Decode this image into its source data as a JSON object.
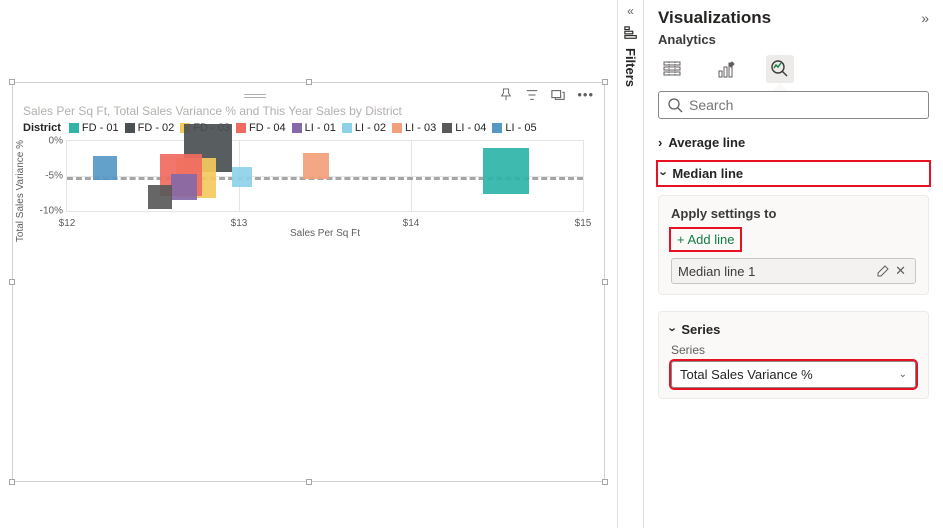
{
  "chart": {
    "title": "Sales Per Sq Ft, Total Sales Variance % and This Year Sales by District",
    "legend_title": "District",
    "x_axis_title": "Sales Per Sq Ft",
    "y_axis_title": "Total Sales Variance %",
    "xlim": [
      12,
      15
    ],
    "ylim": [
      -10,
      0
    ],
    "xticks": [
      "$12",
      "$13",
      "$14",
      "$15"
    ],
    "yticks": [
      "0%",
      "-5%",
      "-10%"
    ],
    "median_y": -5.1,
    "median_color": "#a6a6a6",
    "background": "#ffffff",
    "grid_color": "#e5e5e5",
    "series": [
      {
        "name": "FD - 01",
        "color": "#2eb5a7",
        "x": 14.55,
        "y": -4.3,
        "size": 46
      },
      {
        "name": "FD - 02",
        "color": "#4a4f52",
        "x": 12.82,
        "y": -1.0,
        "size": 48
      },
      {
        "name": "FD - 03",
        "color": "#f4c95d",
        "x": 12.75,
        "y": -5.3,
        "size": 40
      },
      {
        "name": "FD - 04",
        "color": "#f06a5f",
        "x": 12.66,
        "y": -4.9,
        "size": 42
      },
      {
        "name": "LI - 01",
        "color": "#8569a8",
        "x": 12.68,
        "y": -6.5,
        "size": 26
      },
      {
        "name": "LI - 02",
        "color": "#8ed2e8",
        "x": 13.02,
        "y": -5.1,
        "size": 20
      },
      {
        "name": "LI - 03",
        "color": "#f2a07b",
        "x": 13.45,
        "y": -3.6,
        "size": 26
      },
      {
        "name": "LI - 04",
        "color": "#595959",
        "x": 12.54,
        "y": -8.0,
        "size": 24
      },
      {
        "name": "LI - 05",
        "color": "#5698c6",
        "x": 12.22,
        "y": -3.8,
        "size": 24
      }
    ]
  },
  "rail": {
    "label": "Filters"
  },
  "viz": {
    "title": "Visualizations",
    "subtitle": "Analytics",
    "search_placeholder": "Search",
    "sections": {
      "average": "Average line",
      "median": "Median line"
    },
    "apply_label": "Apply settings to",
    "add_line": "+ Add line",
    "line_name": "Median line 1",
    "series_section": "Series",
    "series_label": "Series",
    "series_value": "Total Sales Variance %"
  },
  "highlight_color": "#e81123"
}
